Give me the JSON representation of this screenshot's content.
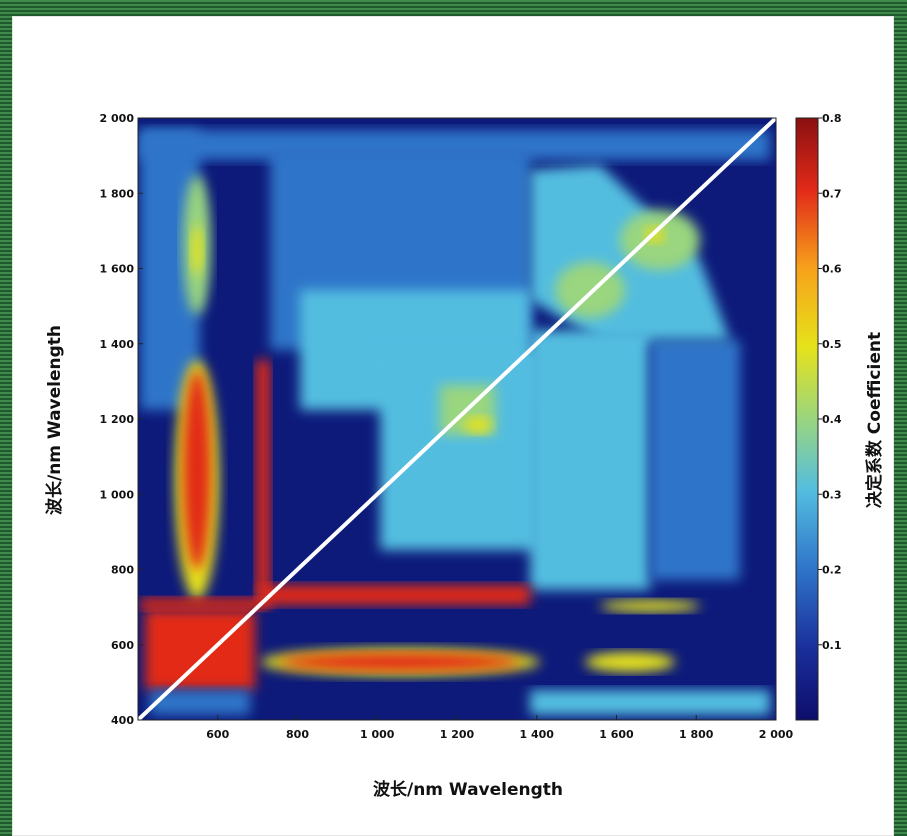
{
  "chart_data": {
    "type": "heatmap",
    "title": "",
    "xlabel": "波长/nm  Wavelength",
    "ylabel": "波长/nm  Wavelength",
    "colorbar_label": "决定系数 Coefficient",
    "x_range": [
      400,
      2000
    ],
    "y_range": [
      400,
      2000
    ],
    "x_ticks": [
      "600",
      "800",
      "1 000",
      "1 200",
      "1 400",
      "1 600",
      "1 800",
      "2 000"
    ],
    "y_ticks": [
      "400",
      "600",
      "800",
      "1 000",
      "1 200",
      "1 400",
      "1 600",
      "1 800",
      "2 000"
    ],
    "colorbar_range": [
      0,
      0.8
    ],
    "colorbar_ticks": [
      "0.1",
      "0.2",
      "0.3",
      "0.4",
      "0.5",
      "0.6",
      "0.7",
      "0.8"
    ],
    "colormap": [
      "#0d0d6b",
      "#1a2f9c",
      "#2f74c9",
      "#53bde0",
      "#9ad57f",
      "#e6e21a",
      "#f7a21b",
      "#e22a19",
      "#8a1010"
    ],
    "diagonal_line": true,
    "regions": [
      {
        "x": [
          520,
          620
        ],
        "y": [
          1050,
          1350
        ],
        "value": 0.75
      },
      {
        "x": [
          520,
          620
        ],
        "y": [
          400,
          2000
        ],
        "value": 0.45
      },
      {
        "x": [
          700,
          720
        ],
        "y": [
          700,
          1400
        ],
        "value": 0.72
      },
      {
        "x": [
          720,
          1400
        ],
        "y": [
          690,
          720
        ],
        "value": 0.75
      },
      {
        "x": [
          720,
          1400
        ],
        "y": [
          520,
          590
        ],
        "value": 0.7
      },
      {
        "x": [
          400,
          720
        ],
        "y": [
          520,
          720
        ],
        "value": 0.7
      },
      {
        "x": [
          1150,
          1300
        ],
        "y": [
          1150,
          1300
        ],
        "value": 0.45
      },
      {
        "x": [
          1400,
          1900
        ],
        "y": [
          1400,
          1900
        ],
        "value": 0.35
      },
      {
        "x": [
          1400,
          1900
        ],
        "y": [
          700,
          1300
        ],
        "value": 0.28
      },
      {
        "x": [
          800,
          1400
        ],
        "y": [
          1300,
          1800
        ],
        "value": 0.25
      }
    ]
  }
}
